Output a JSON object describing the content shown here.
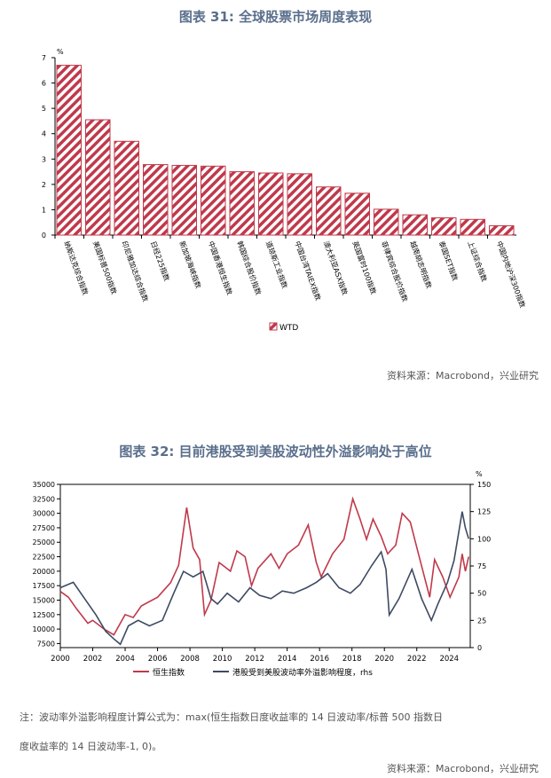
{
  "chart_data": [
    {
      "type": "bar",
      "title": "图表 31: 全球股票市场周度表现",
      "ylabel": "%",
      "ylim": [
        0,
        7
      ],
      "yticks": [
        0,
        1,
        2,
        3,
        4,
        5,
        6,
        7
      ],
      "categories": [
        "纳斯达克综合指数",
        "美国标普500指数",
        "印尼雅加达综合指数",
        "日经225指数",
        "新加坡海峡指数",
        "中国香港恒生指数",
        "韩国综合股价指数",
        "道琼斯工业指数",
        "中国台湾TAIEX指数",
        "澳大利亚ASX指数",
        "英国富时100指数",
        "菲律宾综合股价指数",
        "越南胡志明指数",
        "泰国SET指数",
        "上证综合指数",
        "中国内地沪深300指数"
      ],
      "series": [
        {
          "name": "WTD",
          "values": [
            6.7,
            4.55,
            3.7,
            2.78,
            2.75,
            2.72,
            2.5,
            2.45,
            2.42,
            1.9,
            1.65,
            1.02,
            0.8,
            0.68,
            0.62,
            0.37
          ]
        }
      ],
      "legend": "bottom",
      "color": "#c0394b",
      "source": "资料来源：Macrobond，兴业研究"
    },
    {
      "type": "line",
      "title": "图表 32: 目前港股受到美股波动性外溢影响处于高位",
      "xlim": [
        2000,
        2025.3
      ],
      "xticks": [
        2000,
        2002,
        2004,
        2006,
        2008,
        2010,
        2012,
        2014,
        2016,
        2018,
        2020,
        2022,
        2024
      ],
      "ylim_left": [
        7500,
        35000
      ],
      "yticks_left": [
        7500,
        10000,
        12500,
        15000,
        17500,
        20000,
        22500,
        25000,
        27500,
        30000,
        32500,
        35000
      ],
      "ylim_right": [
        0,
        150
      ],
      "yticks_right": [
        0,
        25,
        50,
        75,
        100,
        125,
        150
      ],
      "right_unit": "%",
      "legend": "bottom",
      "series": [
        {
          "name": "恒生指数",
          "axis": "left",
          "color": "#c0394b",
          "x": [
            2000,
            2000.5,
            2001,
            2001.7,
            2002,
            2002.7,
            2003.3,
            2004,
            2004.5,
            2005,
            2006,
            2006.8,
            2007.3,
            2007.8,
            2008.2,
            2008.6,
            2008.9,
            2009.3,
            2009.8,
            2010.5,
            2010.9,
            2011.4,
            2011.8,
            2012.2,
            2013,
            2013.5,
            2014,
            2014.7,
            2015.3,
            2015.8,
            2016.1,
            2016.8,
            2017.5,
            2018.05,
            2018.5,
            2018.9,
            2019.3,
            2019.8,
            2020.2,
            2020.7,
            2021.1,
            2021.6,
            2022.1,
            2022.8,
            2023.1,
            2023.6,
            2024.05,
            2024.6,
            2024.8,
            2025.0,
            2025.2
          ],
          "values": [
            16500,
            15500,
            13500,
            11000,
            11500,
            10000,
            9000,
            12500,
            12000,
            14000,
            15500,
            18000,
            21000,
            31000,
            24000,
            22000,
            12500,
            15000,
            21500,
            20000,
            23500,
            22500,
            17500,
            20500,
            23000,
            20500,
            23000,
            24500,
            28000,
            21500,
            19000,
            23000,
            25500,
            32500,
            29000,
            25500,
            29000,
            26000,
            23000,
            24500,
            30000,
            28500,
            23000,
            15500,
            22000,
            19000,
            15500,
            19000,
            23000,
            20000,
            22500
          ]
        },
        {
          "name": "港股受到美股波动率外溢影响程度，rhs",
          "axis": "right",
          "color": "#3d4a63",
          "x": [
            2000,
            2000.8,
            2001.5,
            2002.2,
            2002.8,
            2003.3,
            2003.7,
            2004.2,
            2004.8,
            2005.5,
            2006.3,
            2007,
            2007.6,
            2008.2,
            2008.8,
            2009.3,
            2009.7,
            2010.3,
            2011,
            2011.7,
            2012.3,
            2013,
            2013.7,
            2014.4,
            2015.2,
            2015.8,
            2016.5,
            2017.2,
            2017.9,
            2018.5,
            2019.2,
            2019.8,
            2020.1,
            2020.3,
            2020.9,
            2021.7,
            2022.3,
            2022.9,
            2023.3,
            2023.9,
            2024.3,
            2024.8,
            2025.0,
            2025.2
          ],
          "values": [
            55,
            60,
            45,
            30,
            15,
            8,
            3,
            20,
            25,
            20,
            25,
            50,
            70,
            65,
            70,
            45,
            40,
            50,
            42,
            55,
            48,
            45,
            52,
            50,
            55,
            60,
            68,
            55,
            50,
            58,
            75,
            88,
            72,
            30,
            45,
            72,
            45,
            25,
            40,
            60,
            80,
            125,
            110,
            100
          ]
        }
      ],
      "source": "资料来源：Macrobond，兴业研究",
      "note_line1": "注：波动率外溢影响程度计算公式为：max(恒生指数日度收益率的 14 日波动率/标普 500 指数日",
      "note_line2": "度收益率的 14 日波动率-1, 0)。"
    }
  ]
}
